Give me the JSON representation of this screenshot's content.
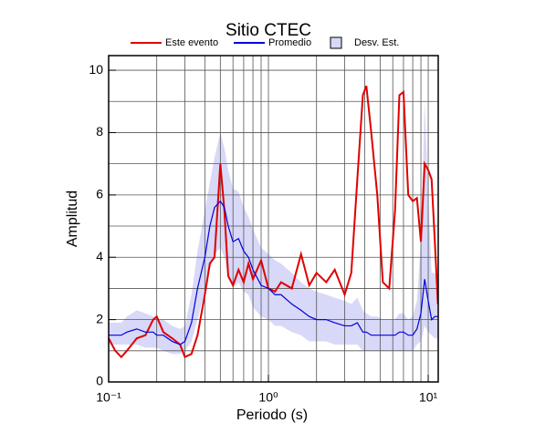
{
  "chart_data": {
    "type": "line",
    "title": "Sitio CTEC",
    "x_label": "Periodo (s)",
    "y_label": "Amplitud",
    "x": [
      0.1,
      0.11,
      0.12,
      0.13,
      0.15,
      0.17,
      0.19,
      0.2,
      0.22,
      0.25,
      0.28,
      0.3,
      0.33,
      0.36,
      0.4,
      0.43,
      0.46,
      0.5,
      0.53,
      0.56,
      0.6,
      0.65,
      0.7,
      0.75,
      0.8,
      0.9,
      1.0,
      1.1,
      1.2,
      1.4,
      1.6,
      1.8,
      2.0,
      2.3,
      2.6,
      3.0,
      3.3,
      3.6,
      3.9,
      4.1,
      4.4,
      4.8,
      5.2,
      5.7,
      6.2,
      6.6,
      7.0,
      7.5,
      8.0,
      8.5,
      9.0,
      9.5,
      10.0,
      10.5,
      11.0,
      11.5
    ],
    "series": [
      {
        "name": "Desv. Est.",
        "color": "#d8d8f8",
        "lower": [
          1.2,
          1.2,
          1.2,
          1.2,
          1.2,
          1.1,
          1.1,
          1.1,
          1.0,
          0.9,
          0.9,
          1.0,
          1.3,
          2.0,
          2.9,
          3.6,
          4.1,
          4.3,
          4.0,
          3.4,
          3.0,
          3.2,
          2.9,
          2.8,
          2.4,
          2.1,
          2.0,
          1.8,
          1.8,
          1.6,
          1.5,
          1.3,
          1.3,
          1.3,
          1.2,
          1.2,
          1.2,
          1.2,
          1.0,
          1.0,
          1.0,
          1.0,
          1.0,
          1.0,
          1.0,
          1.0,
          1.0,
          1.0,
          1.0,
          1.2,
          1.3,
          1.8,
          1.6,
          1.5,
          1.4,
          1.4
        ],
        "upper": [
          1.9,
          1.9,
          1.9,
          2.1,
          2.3,
          2.2,
          2.1,
          2.0,
          2.0,
          1.8,
          1.7,
          1.8,
          2.8,
          4.2,
          5.5,
          6.4,
          7.2,
          8.0,
          7.5,
          6.8,
          6.2,
          6.1,
          5.6,
          5.3,
          4.9,
          4.3,
          4.1,
          3.9,
          3.8,
          3.5,
          3.2,
          3.0,
          2.9,
          2.8,
          2.7,
          2.6,
          2.5,
          2.7,
          2.3,
          2.2,
          2.1,
          2.1,
          2.0,
          2.0,
          2.0,
          2.2,
          2.2,
          2.0,
          2.1,
          2.6,
          4.5,
          9.0,
          6.0,
          3.5,
          3.5,
          3.3
        ]
      },
      {
        "name": "Este evento",
        "color": "#e00000",
        "values": [
          1.4,
          1.0,
          0.8,
          1.0,
          1.4,
          1.5,
          2.0,
          2.1,
          1.6,
          1.4,
          1.2,
          0.8,
          0.9,
          1.5,
          2.8,
          3.8,
          4.0,
          7.0,
          5.5,
          3.4,
          3.1,
          3.6,
          3.2,
          3.8,
          3.3,
          3.9,
          3.0,
          2.9,
          3.2,
          3.0,
          4.1,
          3.1,
          3.5,
          3.2,
          3.6,
          2.8,
          3.5,
          6.5,
          9.2,
          9.5,
          8.0,
          6.0,
          3.2,
          3.0,
          5.5,
          9.2,
          9.3,
          6.0,
          5.8,
          5.9,
          4.5,
          7.0,
          6.8,
          6.5,
          4.5,
          2.5
        ]
      },
      {
        "name": "Promedio",
        "color": "#0000dd",
        "values": [
          1.5,
          1.5,
          1.5,
          1.6,
          1.7,
          1.6,
          1.6,
          1.5,
          1.5,
          1.3,
          1.2,
          1.3,
          1.9,
          3.0,
          4.0,
          5.0,
          5.6,
          5.8,
          5.6,
          5.0,
          4.5,
          4.6,
          4.2,
          4.0,
          3.6,
          3.1,
          3.0,
          2.8,
          2.8,
          2.5,
          2.3,
          2.1,
          2.0,
          2.0,
          1.9,
          1.8,
          1.8,
          1.9,
          1.6,
          1.6,
          1.5,
          1.5,
          1.5,
          1.5,
          1.5,
          1.6,
          1.6,
          1.5,
          1.5,
          1.7,
          2.2,
          3.3,
          2.6,
          2.0,
          2.1,
          2.1
        ]
      }
    ],
    "xscale": "log",
    "xlim": [
      0.1,
      11.55
    ],
    "xticks": [
      {
        "value": 0.1,
        "label": "10⁻¹"
      },
      {
        "value": 1,
        "label": "10⁰"
      },
      {
        "value": 10,
        "label": "10¹"
      }
    ],
    "xminor": [
      0.2,
      0.3,
      0.4,
      0.5,
      0.6,
      0.7,
      0.8,
      0.9,
      2,
      3,
      4,
      5,
      6,
      7,
      8,
      9
    ],
    "ylim": [
      0,
      10.47
    ],
    "yticks": [
      0,
      2,
      4,
      6,
      8,
      10
    ],
    "yminor": [
      1,
      3,
      5,
      7,
      9
    ],
    "grid": true
  }
}
